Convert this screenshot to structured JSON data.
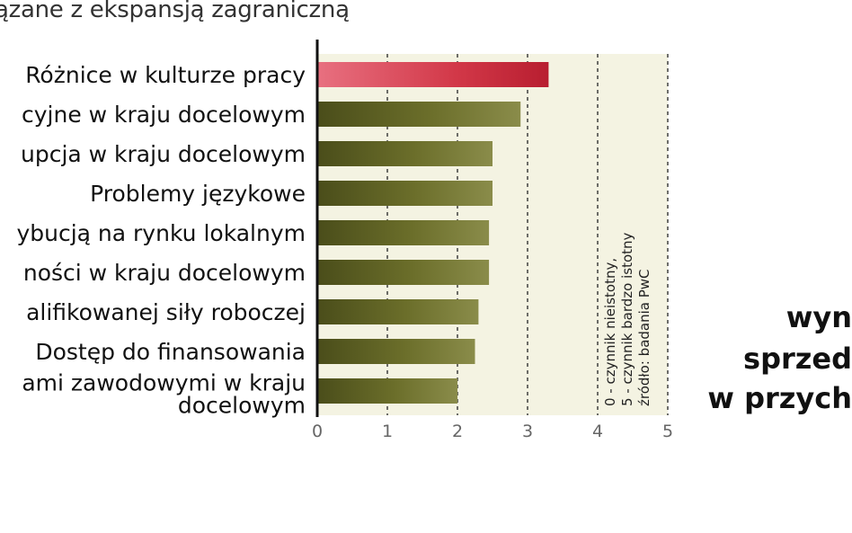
{
  "header": {
    "title": "ązane z ekspansją zagraniczną"
  },
  "chart_data": {
    "type": "bar",
    "orientation": "horizontal",
    "title": "ązane z ekspansją zagraniczną",
    "categories": [
      [
        "Różnice w kulturze pracy"
      ],
      [
        "cyjne w kraju docelowym"
      ],
      [
        "upcja w kraju docelowym"
      ],
      [
        "Problemy językowe"
      ],
      [
        "ybucją na rynku lokalnym"
      ],
      [
        "ności w kraju docelowym"
      ],
      [
        "alifikowanej siły roboczej"
      ],
      [
        "Dostęp do finansowania"
      ],
      [
        "ami zawodowymi w kraju",
        "docelowym"
      ]
    ],
    "values": [
      3.3,
      2.9,
      2.5,
      2.5,
      2.45,
      2.45,
      2.3,
      2.25,
      2.0
    ],
    "highlight_index": 0,
    "colors": {
      "highlight": "#c8283c",
      "bar": "#6b6e2a",
      "background_band": "#f4f3e2",
      "axis": "#111111",
      "gridline": "#333333"
    },
    "xlim": [
      0,
      5
    ],
    "xticks": [
      "0",
      "1",
      "2",
      "3",
      "4",
      "5"
    ],
    "grid": "vertical dashed",
    "note": [
      "0 - czynnik nieistotny,",
      "5 - czynnik bardzo istotny",
      "źródło: badania PwC"
    ]
  },
  "side_text": [
    "wyn",
    "sprzed",
    "w przych"
  ]
}
